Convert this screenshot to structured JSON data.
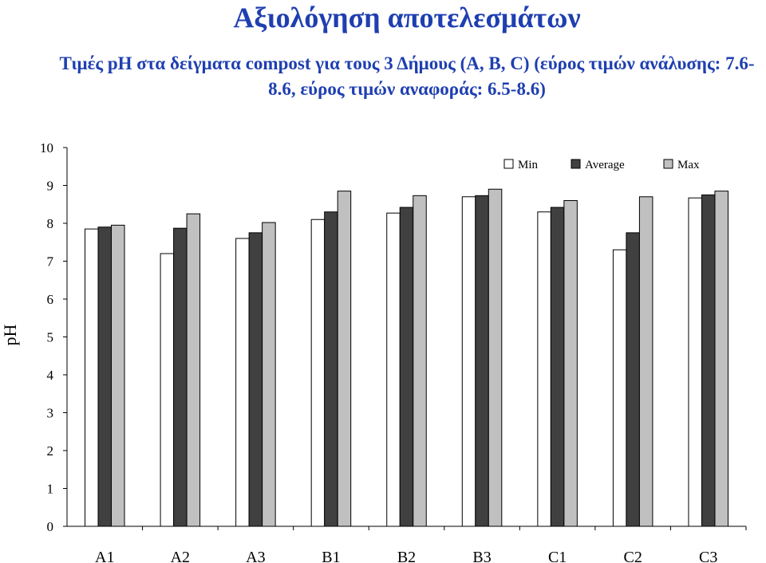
{
  "page": {
    "title": "Αξιολόγηση αποτελεσμάτων",
    "subtitle": "Τιμές pH στα δείγματα compost για τους 3 Δήμους (A, B, C) (εύρος τιμών ανάλυσης: 7.6-8.6, εύρος τιμών αναφοράς: 6.5-8.6)"
  },
  "chart_data": {
    "type": "bar",
    "ylabel": "pH",
    "xlabel": "",
    "ylim": [
      0,
      10
    ],
    "yticks": [
      0,
      1,
      2,
      3,
      4,
      5,
      6,
      7,
      8,
      9,
      10
    ],
    "grid": false,
    "legend_position": "top-right",
    "categories": [
      "A1",
      "A2",
      "A3",
      "B1",
      "B2",
      "B3",
      "C1",
      "C2",
      "C3"
    ],
    "series": [
      {
        "name": "Min",
        "color": "#ffffff",
        "values": [
          7.85,
          7.2,
          7.6,
          8.1,
          8.27,
          8.7,
          8.3,
          7.3,
          8.67
        ]
      },
      {
        "name": "Average",
        "color": "#404040",
        "values": [
          7.9,
          7.87,
          7.75,
          8.3,
          8.42,
          8.73,
          8.42,
          7.75,
          8.75
        ]
      },
      {
        "name": "Max",
        "color": "#c0c0c0",
        "values": [
          7.95,
          8.25,
          8.02,
          8.85,
          8.73,
          8.9,
          8.6,
          8.7,
          8.85
        ]
      }
    ]
  }
}
